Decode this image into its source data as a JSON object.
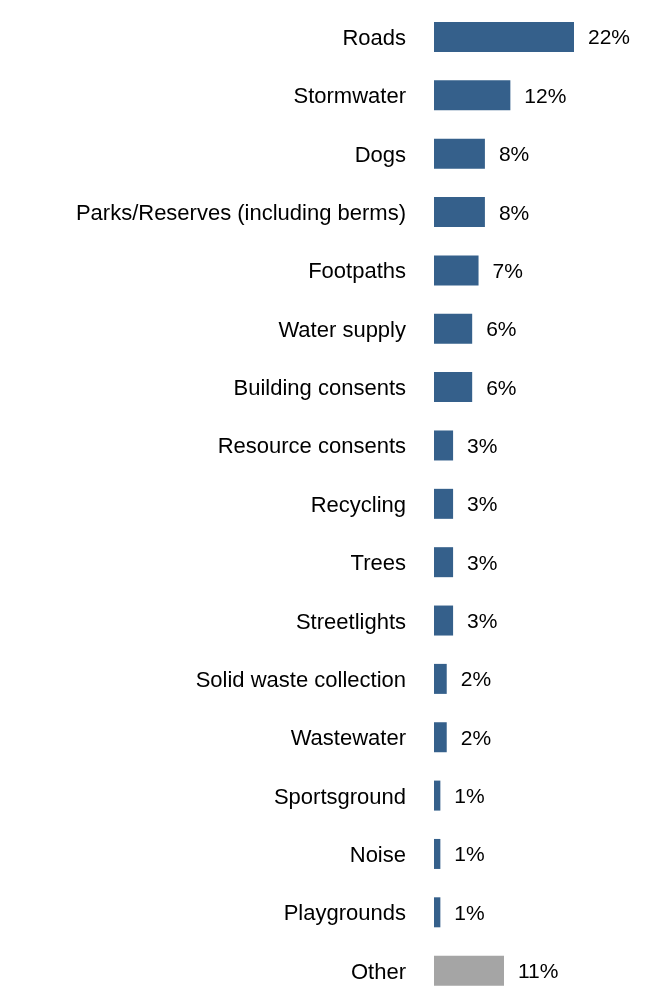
{
  "chart_data": {
    "type": "bar",
    "orientation": "horizontal",
    "categories": [
      "Roads",
      "Stormwater",
      "Dogs",
      "Parks/Reserves (including berms)",
      "Footpaths",
      "Water supply",
      "Building consents",
      "Resource consents",
      "Recycling",
      "Trees",
      "Streetlights",
      "Solid waste collection",
      "Wastewater",
      "Sportsground",
      "Noise",
      "Playgrounds",
      "Other"
    ],
    "values": [
      22,
      12,
      8,
      8,
      7,
      6,
      6,
      3,
      3,
      3,
      3,
      2,
      2,
      1,
      1,
      1,
      11
    ],
    "value_labels": [
      "22%",
      "12%",
      "8%",
      "8%",
      "7%",
      "6%",
      "6%",
      "3%",
      "3%",
      "3%",
      "3%",
      "2%",
      "2%",
      "1%",
      "1%",
      "1%",
      "11%"
    ],
    "colors": [
      "#35608b",
      "#35608b",
      "#35608b",
      "#35608b",
      "#35608b",
      "#35608b",
      "#35608b",
      "#35608b",
      "#35608b",
      "#35608b",
      "#35608b",
      "#35608b",
      "#35608b",
      "#35608b",
      "#35608b",
      "#35608b",
      "#a5a5a5"
    ]
  }
}
